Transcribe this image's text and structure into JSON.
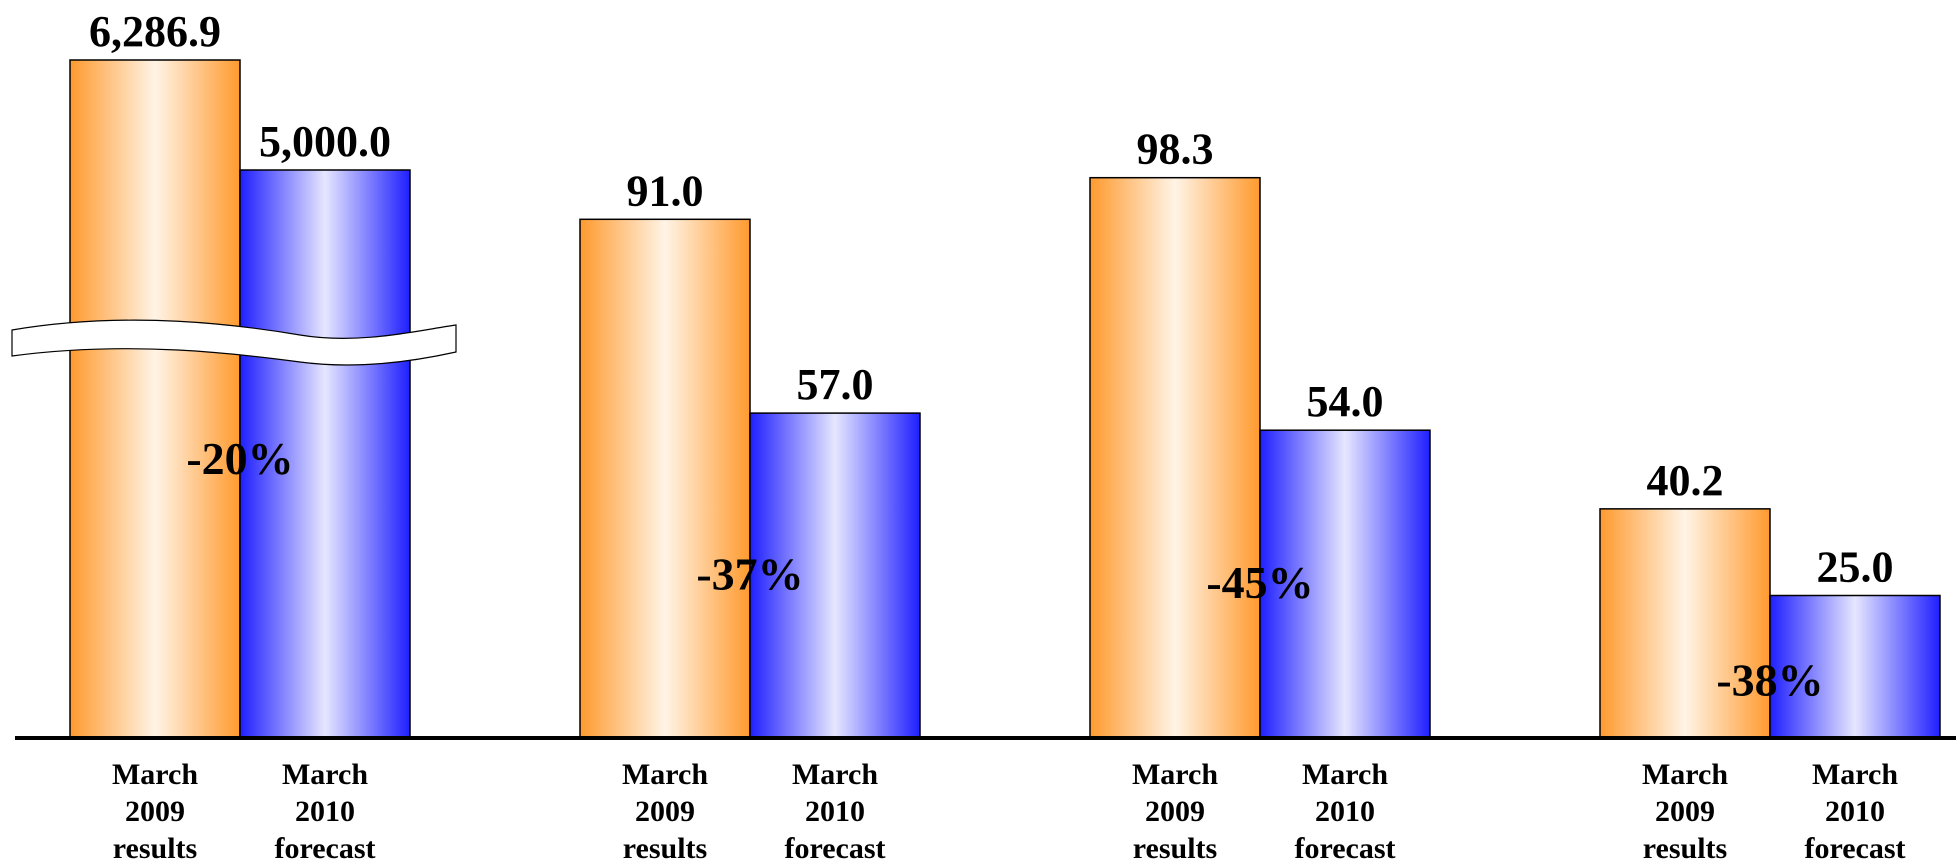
{
  "chart_data": {
    "type": "bar",
    "axis_break": {
      "group": 0,
      "style": "wavy"
    },
    "grid": false,
    "legend": "none",
    "colors": {
      "series_2009_edge": "#ff9a2e",
      "series_2009_center": "#fff4e6",
      "series_2010_edge": "#1f1fff",
      "series_2010_center": "#e6e6ff"
    },
    "groups": [
      {
        "bars": [
          {
            "category": [
              "March",
              "2009",
              "results"
            ],
            "value": 6286.9,
            "label": "6,286.9"
          },
          {
            "category": [
              "March",
              "2010",
              "forecast"
            ],
            "value": 5000.0,
            "label": "5,000.0"
          }
        ],
        "change": "-20%"
      },
      {
        "bars": [
          {
            "category": [
              "March",
              "2009",
              "results"
            ],
            "value": 91.0,
            "label": "91.0"
          },
          {
            "category": [
              "March",
              "2010",
              "forecast"
            ],
            "value": 57.0,
            "label": "57.0"
          }
        ],
        "change": "-37%"
      },
      {
        "bars": [
          {
            "category": [
              "March",
              "2009",
              "results"
            ],
            "value": 98.3,
            "label": "98.3"
          },
          {
            "category": [
              "March",
              "2010",
              "forecast"
            ],
            "value": 54.0,
            "label": "54.0"
          }
        ],
        "change": "-45%"
      },
      {
        "bars": [
          {
            "category": [
              "March",
              "2009",
              "results"
            ],
            "value": 40.2,
            "label": "40.2"
          },
          {
            "category": [
              "March",
              "2010",
              "forecast"
            ],
            "value": 25.0,
            "label": "25.0"
          }
        ],
        "change": "-38%"
      }
    ]
  }
}
